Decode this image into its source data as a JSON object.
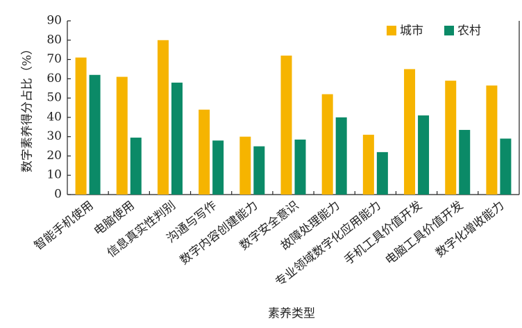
{
  "chart_data": {
    "type": "bar",
    "y_label": "数字素养得分占比（%）",
    "x_label": "素养类型",
    "categories": [
      "智能手机使用",
      "电脑使用",
      "信息真实性判别",
      "沟通与写作",
      "数字内容创建能力",
      "数字安全意识",
      "故障处理能力",
      "专业领域数字化应用能力",
      "手机工具价值开发",
      "电脑工具价值开发",
      "数字化增收能力"
    ],
    "series": [
      {
        "name": "城市",
        "color": "#f6b400",
        "values": [
          71,
          61,
          80,
          44,
          30,
          72,
          52,
          31,
          65,
          59,
          56.5
        ]
      },
      {
        "name": "农村",
        "color": "#0b8a67",
        "values": [
          62,
          29.5,
          58,
          28,
          25,
          28.5,
          40,
          22,
          41,
          33.5,
          29
        ]
      }
    ],
    "ylim": [
      0,
      90
    ],
    "yticks": [
      0,
      10,
      20,
      30,
      40,
      50,
      60,
      70,
      80,
      90
    ],
    "legend": "upper-right",
    "grid": false
  }
}
